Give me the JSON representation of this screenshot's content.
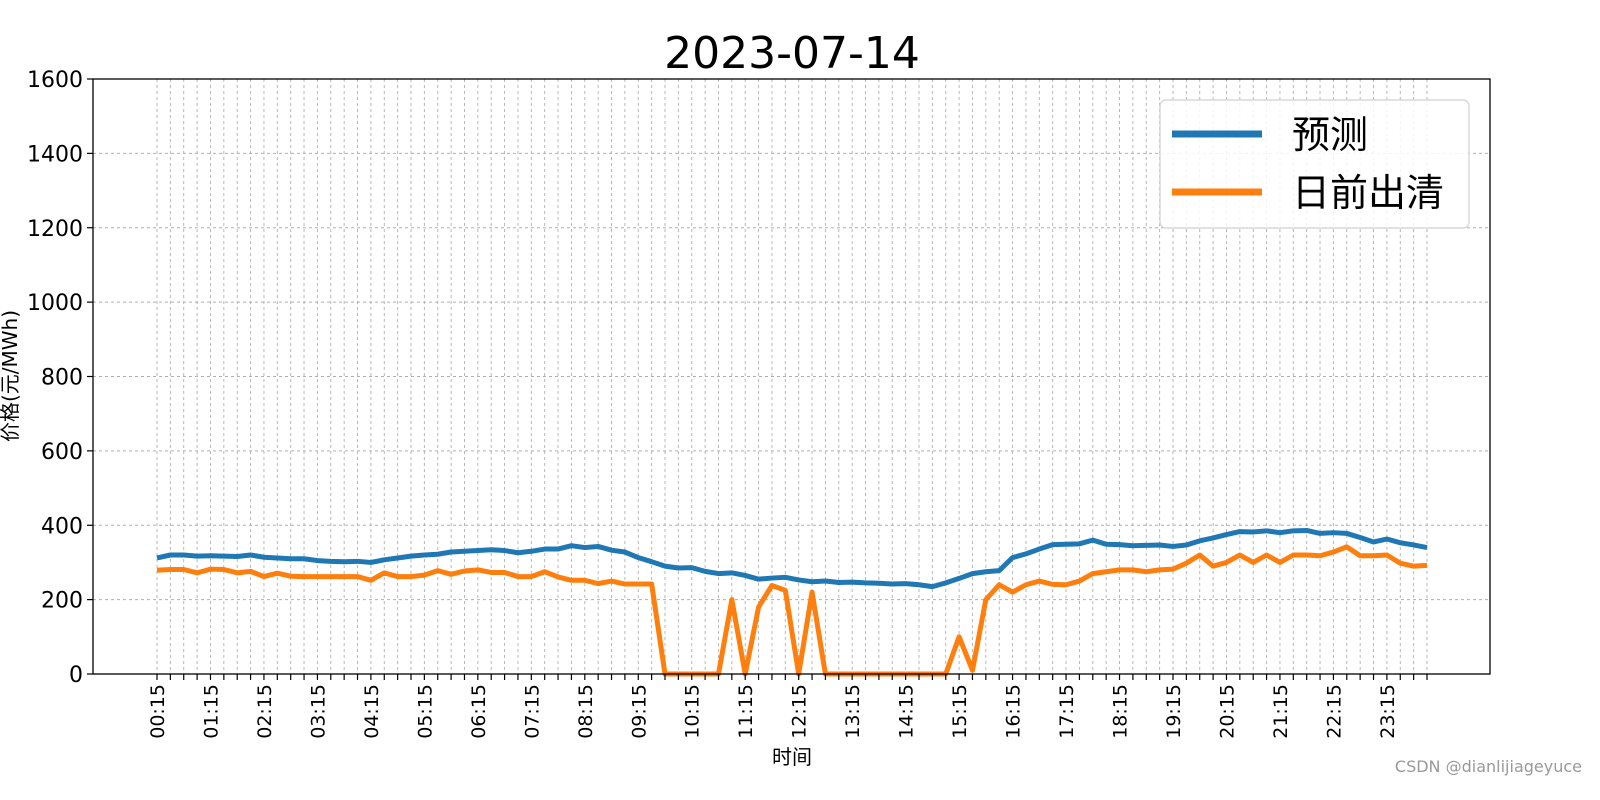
{
  "chart_data": {
    "type": "line",
    "title": "2023-07-14",
    "xlabel": "时间",
    "ylabel": "价格(元/MWh)",
    "ylim": [
      0,
      1600
    ],
    "yticks": [
      0,
      200,
      400,
      600,
      800,
      1000,
      1200,
      1400,
      1600
    ],
    "x_tick_labels": [
      "00:15",
      "01:15",
      "02:15",
      "03:15",
      "04:15",
      "05:15",
      "06:15",
      "07:15",
      "08:15",
      "09:15",
      "10:15",
      "11:15",
      "12:15",
      "13:15",
      "14:15",
      "15:15",
      "16:15",
      "17:15",
      "18:15",
      "19:15",
      "20:15",
      "21:15",
      "22:15",
      "23:15"
    ],
    "x": [
      "00:15",
      "00:30",
      "00:45",
      "01:00",
      "01:15",
      "01:30",
      "01:45",
      "02:00",
      "02:15",
      "02:30",
      "02:45",
      "03:00",
      "03:15",
      "03:30",
      "03:45",
      "04:00",
      "04:15",
      "04:30",
      "04:45",
      "05:00",
      "05:15",
      "05:30",
      "05:45",
      "06:00",
      "06:15",
      "06:30",
      "06:45",
      "07:00",
      "07:15",
      "07:30",
      "07:45",
      "08:00",
      "08:15",
      "08:30",
      "08:45",
      "09:00",
      "09:15",
      "09:30",
      "09:45",
      "10:00",
      "10:15",
      "10:30",
      "10:45",
      "11:00",
      "11:15",
      "11:30",
      "11:45",
      "12:00",
      "12:15",
      "12:30",
      "12:45",
      "13:00",
      "13:15",
      "13:30",
      "13:45",
      "14:00",
      "14:15",
      "14:30",
      "14:45",
      "15:00",
      "15:15",
      "15:30",
      "15:45",
      "16:00",
      "16:15",
      "16:30",
      "16:45",
      "17:00",
      "17:15",
      "17:30",
      "17:45",
      "18:00",
      "18:15",
      "18:30",
      "18:45",
      "19:00",
      "19:15",
      "19:30",
      "19:45",
      "20:00",
      "20:15",
      "20:30",
      "20:45",
      "21:00",
      "21:15",
      "21:30",
      "21:45",
      "22:00",
      "22:15",
      "22:30",
      "22:45",
      "23:00",
      "23:15",
      "23:30",
      "23:45",
      "24:00"
    ],
    "series": [
      {
        "name": "预测",
        "color": "#1f77b4",
        "values": [
          312,
          320,
          320,
          317,
          318,
          317,
          316,
          320,
          314,
          312,
          310,
          310,
          305,
          303,
          302,
          303,
          300,
          307,
          312,
          317,
          320,
          322,
          328,
          330,
          332,
          334,
          332,
          326,
          330,
          336,
          336,
          345,
          340,
          343,
          333,
          328,
          313,
          302,
          290,
          285,
          286,
          276,
          270,
          272,
          265,
          255,
          258,
          260,
          253,
          248,
          250,
          246,
          247,
          245,
          244,
          242,
          243,
          240,
          235,
          245,
          257,
          270,
          275,
          278,
          313,
          323,
          336,
          348,
          349,
          350,
          360,
          349,
          348,
          345,
          346,
          347,
          343,
          347,
          358,
          366,
          375,
          383,
          382,
          385,
          380,
          385,
          386,
          378,
          380,
          378,
          367,
          355,
          363,
          353,
          347,
          340
        ]
      },
      {
        "name": "日前出清",
        "color": "#ff7f0e",
        "values": [
          279,
          281,
          281,
          272,
          282,
          281,
          272,
          276,
          262,
          271,
          263,
          262,
          262,
          262,
          262,
          262,
          252,
          272,
          262,
          262,
          266,
          278,
          268,
          277,
          280,
          273,
          273,
          262,
          262,
          275,
          261,
          252,
          252,
          243,
          250,
          242,
          242,
          242,
          0,
          0,
          0,
          0,
          0,
          200,
          0,
          180,
          238,
          225,
          0,
          220,
          0,
          0,
          0,
          0,
          0,
          0,
          0,
          0,
          0,
          0,
          100,
          10,
          200,
          240,
          220,
          240,
          250,
          241,
          240,
          250,
          270,
          275,
          280,
          280,
          275,
          280,
          282,
          298,
          320,
          290,
          300,
          320,
          300,
          320,
          300,
          320,
          320,
          318,
          328,
          342,
          318,
          318,
          320,
          298,
          290,
          292
        ]
      }
    ],
    "grid": true,
    "legend_position": "top-right"
  },
  "watermark": "CSDN @dianlijiageyuce"
}
